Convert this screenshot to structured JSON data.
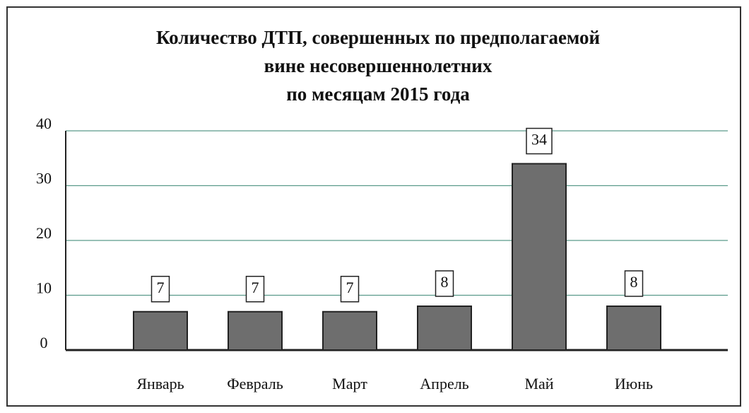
{
  "chart_data": {
    "type": "bar",
    "title": [
      "Количество ДТП, совершенных по предполагаемой",
      "вине несовершеннолетних",
      "по месяцам 2015 года"
    ],
    "categories": [
      "Январь",
      "Февраль",
      "Март",
      "Апрель",
      "Май",
      "Июнь"
    ],
    "values": [
      7,
      7,
      7,
      8,
      34,
      8
    ],
    "color": "#6e6e6e",
    "ylim": [
      0,
      40
    ],
    "yticks": [
      0,
      10,
      20,
      30,
      40
    ],
    "grid": true
  }
}
